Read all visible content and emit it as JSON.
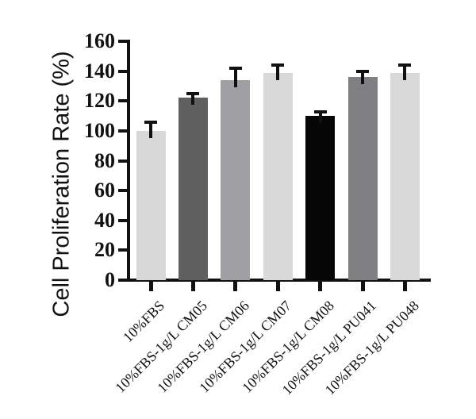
{
  "figure": {
    "background": "#ffffff"
  },
  "chart_data": {
    "type": "bar",
    "title": "",
    "xlabel": "",
    "ylabel": "Cell Proliferation Rate (%)",
    "ylim": [
      0,
      160
    ],
    "ytick_step": 20,
    "yticks": [
      0,
      20,
      40,
      60,
      80,
      100,
      120,
      140,
      160
    ],
    "grid": false,
    "legend_position": "none",
    "categories": [
      "10%FBS",
      "10%FBS-1g/L CM05",
      "10%FBS-1g/L CM06",
      "10%FBS-1g/L CM07",
      "10%FBS-1g/L CM08",
      "10%FBS-1g/L PU041",
      "10%FBS-1g/L PU048"
    ],
    "values": [
      100,
      122,
      134,
      139,
      110,
      136,
      139
    ],
    "errors": [
      7,
      4,
      9,
      6,
      4,
      5,
      6
    ],
    "error_type": "upper-only",
    "bar_colors": [
      "#d8d8d8",
      "#5f5f5f",
      "#a0a0a4",
      "#d9d9d9",
      "#060606",
      "#808082",
      "#d9d9d9"
    ],
    "axis_color": "#111111",
    "text_color": "#111111"
  }
}
